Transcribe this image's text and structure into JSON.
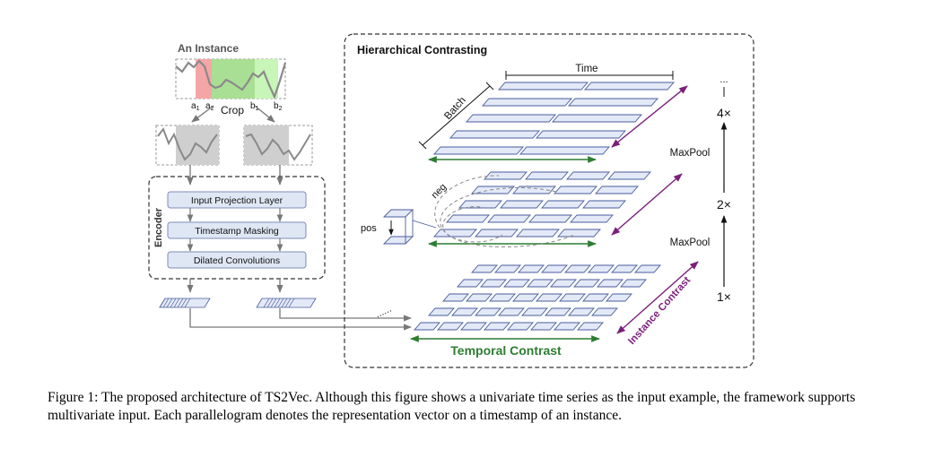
{
  "left": {
    "instance_title": "An Instance",
    "crop_label": "Crop",
    "markers": {
      "a1": "a",
      "a2": "a",
      "b1": "b",
      "b2": "b",
      "s1": "1",
      "s2": "2"
    },
    "encoder": {
      "title": "Encoder",
      "layers": [
        "Input Projection Layer",
        "Timestamp Masking",
        "Dilated Convolutions"
      ]
    }
  },
  "right": {
    "title": "Hierarchical Contrasting",
    "time_label": "Time",
    "batch_label": "Batch",
    "neg_label": "neg",
    "pos_label": "pos",
    "maxpool_labels": [
      "MaxPool",
      "MaxPool"
    ],
    "scales": [
      "4×",
      "2×",
      "1×"
    ],
    "dots": "...",
    "dots_small": "......",
    "temporal_contrast": "Temporal Contrast",
    "instance_contrast": "Instance Contrast"
  },
  "colors": {
    "green": "#2e7d32",
    "purple": "#7b1f7b",
    "cell_fill": "#e3e9f7",
    "cell_stroke": "#4a5c9c",
    "box_fill": "#dfe7f5",
    "red_region": "#f4a6a6",
    "green_region": "#a9df94",
    "light_green_region": "#c8f5b8",
    "crop_fill": "#cfcfcf"
  },
  "caption": "Figure 1: The proposed architecture of TS2Vec. Although this figure shows a univariate time series as the input example, the framework supports multivariate input. Each parallelogram denotes the representation vector on a timestamp of an instance."
}
